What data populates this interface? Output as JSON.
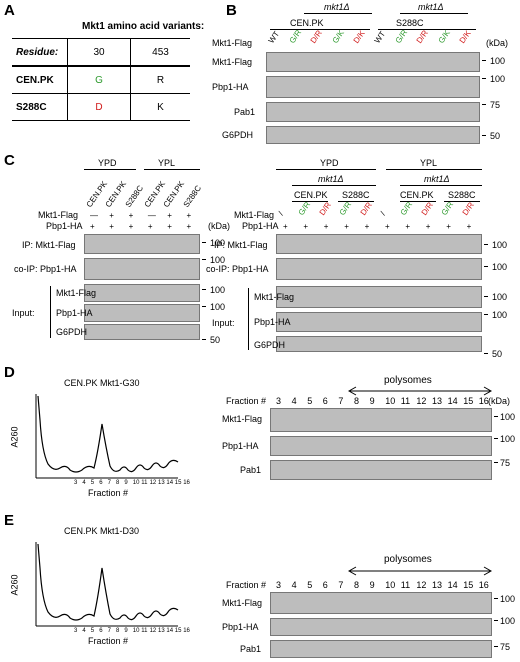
{
  "panels": {
    "A": "A",
    "B": "B",
    "C": "C",
    "D": "D",
    "E": "E"
  },
  "panelA": {
    "title": "Mkt1 amino acid variants:",
    "residue_label": "Residue:",
    "col1": "30",
    "col2": "453",
    "rows": [
      {
        "strain": "CEN.PK",
        "r30": "G",
        "r453": "R"
      },
      {
        "strain": "S288C",
        "r30": "D",
        "r453": "K"
      }
    ]
  },
  "panelB": {
    "mkt1d": "mkt1Δ",
    "strains": [
      "CEN.PK",
      "S288C"
    ],
    "lanes": [
      "WT",
      "G/R",
      "D/R",
      "G/K",
      "D/K",
      "WT",
      "G/R",
      "D/R",
      "G/K",
      "D/K"
    ],
    "row_labels": [
      "Mkt1-Flag",
      "Mkt1-Flag",
      "Pbp1-HA",
      "Pab1",
      "G6PDH"
    ],
    "kda": "(kDa)",
    "markers": [
      "100",
      "100",
      "75",
      "50"
    ]
  },
  "panelC_left": {
    "media": [
      "YPD",
      "YPL"
    ],
    "strains": [
      "CEN.PK",
      "CEN.PK",
      "S288C",
      "CEN.PK",
      "CEN.PK",
      "S288C"
    ],
    "mkt1_row": [
      "—",
      "+",
      "+",
      "—",
      "+",
      "+"
    ],
    "pbp1_row": [
      "+",
      "+",
      "+",
      "+",
      "+",
      "+"
    ],
    "labels": {
      "mkt1flag": "Mkt1-Flag",
      "pbp1ha": "Pbp1-HA",
      "ip": "IP: Mkt1-Flag",
      "coip": "co-IP: Pbp1-HA",
      "input": "Input:",
      "mkt": "Mkt1-Flag",
      "pbp": "Pbp1-HA",
      "g6": "G6PDH"
    },
    "kda": "(kDa)",
    "markers": [
      "100",
      "100",
      "100",
      "100",
      "50"
    ]
  },
  "panelC_right": {
    "media": [
      "YPD",
      "YPL"
    ],
    "mkt1d": "mkt1Δ",
    "strains": [
      "CEN.PK",
      "S288C",
      "CEN.PK",
      "S288C"
    ],
    "mkt1_row": [
      "/",
      "G/R",
      "D/R",
      "G/R",
      "D/R",
      "/",
      "G/R",
      "D/R",
      "G/R",
      "D/R"
    ],
    "pbp1_row": [
      "+",
      "+",
      "+",
      "+",
      "+",
      "+",
      "+",
      "+",
      "+",
      "+"
    ],
    "labels": {
      "mkt1flag": "Mkt1-Flag",
      "pbp1ha": "Pbp1-HA",
      "ip": "IP: Mkt1-Flag",
      "coip": "co-IP: Pbp1-HA",
      "input": "Input:",
      "mkt": "Mkt1-Flag",
      "pbp": "Pbp1-HA",
      "g6": "G6PDH"
    },
    "markers": [
      "100",
      "100",
      "100",
      "100",
      "50"
    ]
  },
  "panelD": {
    "title": "CEN.PK Mkt1-G30",
    "ylabel": "A260",
    "xlabel": "Fraction #",
    "fractions": [
      "3",
      "4",
      "5",
      "6",
      "7",
      "8",
      "9",
      "10",
      "11",
      "12",
      "13",
      "14",
      "15",
      "16"
    ],
    "polysomes": "polysomes",
    "fraction_label": "Fraction #",
    "rows": [
      "Mkt1-Flag",
      "Pbp1-HA",
      "Pab1"
    ],
    "kda": "(kDa)",
    "markers": [
      "100",
      "100",
      "75"
    ]
  },
  "panelE": {
    "title": "CEN.PK Mkt1-D30",
    "ylabel": "A260",
    "xlabel": "Fraction #",
    "fractions": [
      "3",
      "4",
      "5",
      "6",
      "7",
      "8",
      "9",
      "10",
      "11",
      "12",
      "13",
      "14",
      "15",
      "16"
    ],
    "polysomes": "polysomes",
    "fraction_label": "Fraction #",
    "rows": [
      "Mkt1-Flag",
      "Pbp1-HA",
      "Pab1"
    ],
    "markers": [
      "100",
      "100",
      "75"
    ]
  }
}
